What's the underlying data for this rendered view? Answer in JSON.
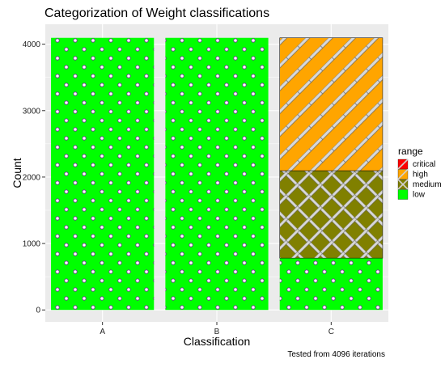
{
  "chart_data": {
    "type": "bar",
    "stacked": true,
    "title": "Categorization of Weight classifications",
    "xlabel": "Classification",
    "ylabel": "Count",
    "caption": "Tested from 4096 iterations",
    "categories": [
      "A",
      "B",
      "C"
    ],
    "series": [
      {
        "name": "low",
        "values": [
          4096,
          4096,
          780
        ],
        "color": "#00FF00",
        "pattern": "dots"
      },
      {
        "name": "medium",
        "values": [
          0,
          0,
          1316
        ],
        "color": "#808000",
        "pattern": "crosshatch"
      },
      {
        "name": "high",
        "values": [
          0,
          0,
          2000
        ],
        "color": "#FFA500",
        "pattern": "stripe"
      },
      {
        "name": "critical",
        "values": [
          0,
          0,
          0
        ],
        "color": "#FF0000",
        "pattern": "stripe"
      }
    ],
    "legend": {
      "title": "range",
      "entries": [
        "critical",
        "high",
        "medium",
        "low"
      ],
      "placement": "right"
    },
    "yticks": [
      0,
      1000,
      2000,
      3000,
      4000
    ],
    "ylim": [
      -180,
      4300
    ],
    "grid": true,
    "background": "#EBEBEB"
  }
}
